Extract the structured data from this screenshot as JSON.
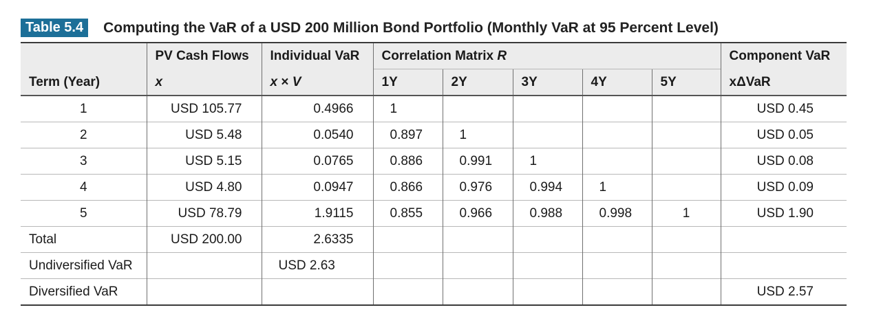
{
  "caption": {
    "badge": "Table 5.4",
    "title": "Computing the VaR of a USD 200 Million Bond Portfolio (Monthly VaR at 95 Percent Level)"
  },
  "header": {
    "pv_cash_flows": "PV Cash Flows",
    "individual_var": "Individual VaR",
    "correlation_matrix": "Correlation Matrix",
    "correlation_symbol": "R",
    "component_var": "Component VaR",
    "term": "Term (Year)",
    "x": "x",
    "x_times_v_prefix": "x",
    "x_times_v_op": " × ",
    "x_times_v_suffix": "V",
    "y1": "1Y",
    "y2": "2Y",
    "y3": "3Y",
    "y4": "4Y",
    "y5": "5Y",
    "x_delta_var": "xΔVaR"
  },
  "rows": [
    {
      "term": "1",
      "pv": "USD 105.77",
      "ivar": "0.4966",
      "c1": "1",
      "c2": "",
      "c3": "",
      "c4": "",
      "c5": "",
      "comp": "USD 0.45"
    },
    {
      "term": "2",
      "pv": "USD 5.48",
      "ivar": "0.0540",
      "c1": "0.897",
      "c2": "1",
      "c3": "",
      "c4": "",
      "c5": "",
      "comp": "USD 0.05"
    },
    {
      "term": "3",
      "pv": "USD 5.15",
      "ivar": "0.0765",
      "c1": "0.886",
      "c2": "0.991",
      "c3": "1",
      "c4": "",
      "c5": "",
      "comp": "USD 0.08"
    },
    {
      "term": "4",
      "pv": "USD 4.80",
      "ivar": "0.0947",
      "c1": "0.866",
      "c2": "0.976",
      "c3": "0.994",
      "c4": "1",
      "c5": "",
      "comp": "USD 0.09"
    },
    {
      "term": "5",
      "pv": "USD 78.79",
      "ivar": "1.9115",
      "c1": "0.855",
      "c2": "0.966",
      "c3": "0.988",
      "c4": "0.998",
      "c5": "1",
      "comp": "USD 1.90"
    }
  ],
  "total": {
    "label": "Total",
    "pv": "USD 200.00",
    "ivar": "2.6335"
  },
  "undiversified": {
    "label": "Undiversified VaR",
    "ivar": "USD 2.63"
  },
  "diversified": {
    "label": "Diversified VaR",
    "comp": "USD 2.57"
  },
  "colors": {
    "badge": "#1c6f98",
    "header_bg": "#ececec"
  }
}
